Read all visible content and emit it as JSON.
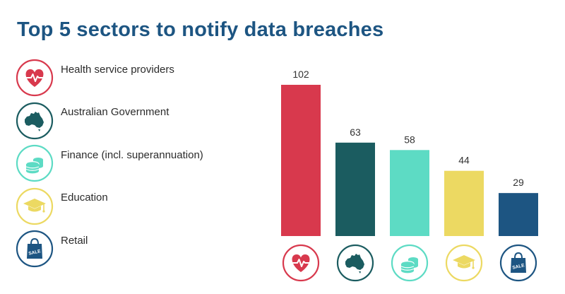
{
  "title": "Top 5 sectors to notify data breaches",
  "colors": {
    "title": "#1d5582",
    "health": "#d8394d",
    "government": "#1b5c60",
    "finance": "#5ddbc4",
    "education": "#ecd962",
    "retail": "#1d5582"
  },
  "legend": [
    {
      "label": "Health service providers",
      "icon": "heart-pulse-icon"
    },
    {
      "label": "Australian Government",
      "icon": "australia-map-icon"
    },
    {
      "label": "Finance (incl. superannuation)",
      "icon": "coins-icon"
    },
    {
      "label": "Education",
      "icon": "graduation-cap-icon"
    },
    {
      "label": "Retail",
      "icon": "shopping-bag-icon",
      "icon_text": "SALE"
    }
  ],
  "chart_data": {
    "type": "bar",
    "title": "Top 5 sectors to notify data breaches",
    "categories": [
      "Health service providers",
      "Australian Government",
      "Finance (incl. superannuation)",
      "Education",
      "Retail"
    ],
    "values": [
      102,
      63,
      58,
      44,
      29
    ],
    "value_labels": [
      "102",
      "63",
      "58",
      "44",
      "29"
    ],
    "colors": [
      "#d8394d",
      "#1b5c60",
      "#5ddbc4",
      "#ecd962",
      "#1d5582"
    ],
    "ylim": [
      0,
      102
    ],
    "grid": false,
    "legend": "left"
  }
}
